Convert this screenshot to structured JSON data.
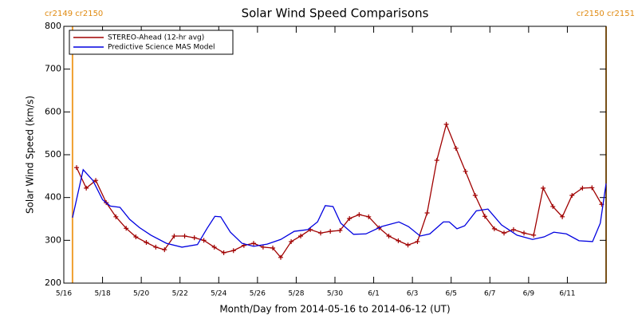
{
  "chart_data": {
    "type": "line",
    "title": "Solar Wind Speed Comparisons",
    "xlabel": "Month/Day from 2014-05-16 to 2014-06-12 (UT)",
    "ylabel": "Solar Wind Speed (km/s)",
    "xlim": [
      0,
      28
    ],
    "ylim": [
      200,
      800
    ],
    "yticks": [
      200,
      300,
      400,
      500,
      600,
      700,
      800
    ],
    "xticks": [
      {
        "value": 0,
        "label": "5/16"
      },
      {
        "value": 2,
        "label": "5/18"
      },
      {
        "value": 4,
        "label": "5/20"
      },
      {
        "value": 6,
        "label": "5/22"
      },
      {
        "value": 8,
        "label": "5/24"
      },
      {
        "value": 10,
        "label": "5/26"
      },
      {
        "value": 12,
        "label": "5/28"
      },
      {
        "value": 14,
        "label": "5/30"
      },
      {
        "value": 16,
        "label": "6/1"
      },
      {
        "value": 18,
        "label": "6/3"
      },
      {
        "value": 20,
        "label": "6/5"
      },
      {
        "value": 22,
        "label": "6/7"
      },
      {
        "value": 24,
        "label": "6/9"
      },
      {
        "value": 26,
        "label": "6/11"
      }
    ],
    "carrington_lines": [
      {
        "x": 0.45,
        "label": "cr2149 cr2150",
        "color": "#f0a030"
      },
      {
        "x": 28,
        "label": "cr2150 cr2151",
        "color": "#f0a030"
      }
    ],
    "legend": "upper left",
    "series": [
      {
        "name": "STEREO-Ahead (12-hr avg)",
        "color": "#a00000",
        "markers": true,
        "x": [
          0.66,
          1.16,
          1.65,
          2.19,
          2.69,
          3.22,
          3.72,
          4.26,
          4.75,
          5.2,
          5.7,
          6.24,
          6.74,
          7.23,
          7.77,
          8.26,
          8.76,
          9.3,
          9.8,
          10.29,
          10.79,
          11.2,
          11.74,
          12.23,
          12.73,
          13.26,
          13.76,
          14.26,
          14.75,
          15.25,
          15.74,
          16.28,
          16.78,
          17.27,
          17.77,
          18.26,
          18.76,
          19.26,
          19.75,
          20.25,
          20.74,
          21.24,
          21.74,
          22.23,
          22.73,
          23.22,
          23.76,
          24.26,
          24.75,
          25.25,
          25.74,
          26.24,
          26.78,
          27.27,
          27.77
        ],
        "values": [
          470,
          422,
          440,
          388,
          355,
          328,
          308,
          295,
          284,
          278,
          310,
          310,
          306,
          300,
          284,
          271,
          276,
          288,
          293,
          284,
          282,
          260,
          297,
          310,
          325,
          317,
          321,
          323,
          351,
          360,
          355,
          329,
          310,
          299,
          289,
          297,
          364,
          487,
          571,
          515,
          461,
          405,
          356,
          327,
          317,
          325,
          317,
          312,
          422,
          379,
          355,
          405,
          422,
          423,
          384
        ]
      },
      {
        "name": "Predictive Science MAS Model",
        "color": "#0000e0",
        "markers": false,
        "x": [
          0.45,
          1,
          1.5,
          2,
          2.4,
          2.9,
          3.4,
          3.9,
          4.5,
          5.3,
          6.1,
          6.9,
          7.4,
          7.8,
          8.1,
          8.6,
          9.2,
          9.8,
          10.5,
          11.2,
          11.9,
          12.6,
          13.1,
          13.5,
          13.9,
          14.3,
          14.96,
          15.6,
          16.4,
          17.3,
          17.8,
          18.4,
          18.9,
          19.6,
          19.9,
          20.3,
          20.7,
          21.3,
          21.9,
          22.6,
          23.4,
          24.2,
          24.8,
          25.3,
          25.95,
          26.6,
          27.3,
          27.7,
          28
        ],
        "values": [
          353,
          465,
          440,
          395,
          380,
          377,
          349,
          330,
          312,
          293,
          284,
          290,
          328,
          356,
          355,
          319,
          293,
          286,
          291,
          302,
          321,
          325,
          343,
          381,
          379,
          340,
          314,
          315,
          332,
          343,
          332,
          310,
          315,
          343,
          343,
          327,
          334,
          369,
          373,
          336,
          312,
          302,
          308,
          319,
          315,
          299,
          297,
          340,
          433
        ]
      }
    ]
  }
}
